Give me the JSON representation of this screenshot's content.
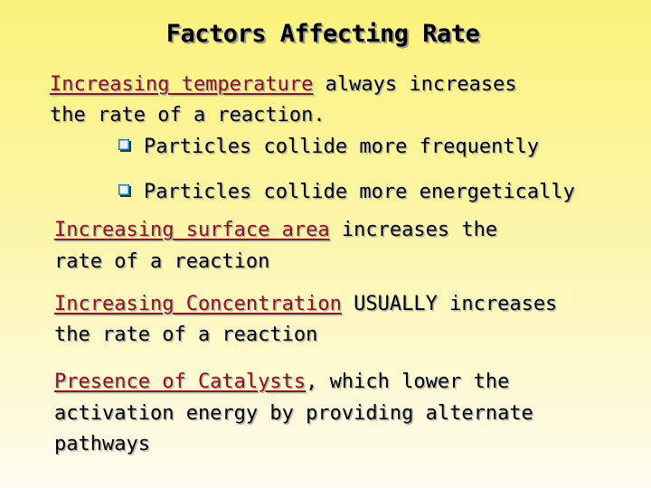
{
  "title": "Factors Affecting Rate",
  "colors": {
    "highlight": "#8b1414",
    "bullet": "#1f7aa8",
    "background_top": "#fbf27a",
    "background_bottom": "#fefcf0"
  },
  "points": [
    {
      "highlight": "Increasing temperature",
      "line1_rest": " always increases",
      "line2": "the rate of a reaction."
    },
    {
      "highlight": "Increasing surface area",
      "line1_rest": " increases the",
      "line2": "rate of a reaction"
    },
    {
      "highlight": "Increasing Concentration",
      "line1_rest": " USUALLY increases",
      "line2": "the rate of a reaction"
    },
    {
      "highlight": "Presence of Catalysts",
      "line1_rest": ", which lower the",
      "line2": "activation energy by providing alternate",
      "line3": "pathways"
    }
  ],
  "sub_bullets": [
    {
      "icon": "checkbox-bullet-icon",
      "text": "Particles collide more frequently"
    },
    {
      "icon": "checkbox-bullet-icon",
      "text": "Particles collide more energetically"
    }
  ]
}
